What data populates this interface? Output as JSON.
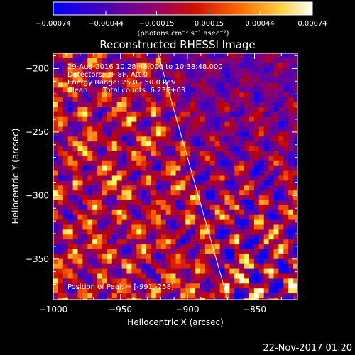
{
  "chart_data": {
    "type": "heatmap",
    "title": "Reconstructed RHESSI Image",
    "xlabel": "Heliocentric X (arcsec)",
    "ylabel": "Heliocentric Y (arcsec)",
    "xlim": [
      -1000,
      -818
    ],
    "ylim": [
      -382,
      -188
    ],
    "x_ticks": [
      -1000,
      -950,
      -900,
      -850
    ],
    "y_ticks": [
      -200,
      -250,
      -300,
      -350
    ],
    "x_tick_labels": [
      "−1000",
      "−950",
      "−900",
      "−850"
    ],
    "y_tick_labels": [
      "−200",
      "−250",
      "−300",
      "−350"
    ],
    "colorbar": {
      "ticks": [
        -0.00074,
        -0.00044,
        -0.00015,
        0.00015,
        0.00044,
        0.00074
      ],
      "tick_labels": [
        "−0.00074",
        "−0.00044",
        "−0.00015",
        "0.00015",
        "0.00044",
        "0.00074"
      ],
      "units_label": "(photons cm⁻² s⁻¹ asec⁻²)",
      "colormap": [
        "#0000ff",
        "#4000c0",
        "#800080",
        "#c00000",
        "#ff6000",
        "#ffff60",
        "#ffffff"
      ]
    },
    "annotations": {
      "time": "29-Aug-2016 10:28:48.000 to 10:38:48.000",
      "detectors": "Detectors: 3F 8F, Att 0",
      "energy": "Energy Range: 25.0 - 50.0 keV",
      "method": "Clean",
      "counts": "Total counts: 6.23E+03",
      "peak": "Position of Peak = [-991,-258]"
    },
    "limb_line": {
      "x": [
        -922,
        -870
      ],
      "y": [
        -188,
        -382
      ]
    },
    "grid": false
  },
  "footer": {
    "date": "22-Nov-2017 01:20"
  }
}
